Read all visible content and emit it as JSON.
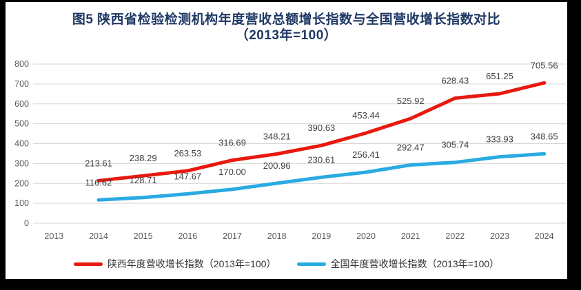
{
  "chart_data": {
    "type": "line",
    "title": "图5  陕西省检验检测机构年度营收总额增长指数与全国营收增长指数对比",
    "subtitle": "（2013年=100）",
    "categories": [
      "2013",
      "2014",
      "2015",
      "2016",
      "2017",
      "2018",
      "2019",
      "2020",
      "2021",
      "2022",
      "2023",
      "2024"
    ],
    "series": [
      {
        "name": "陕西年度营收增长指数（2013年=100）",
        "color": "#e8190f",
        "start_index": 1,
        "values": [
          213.61,
          238.29,
          263.53,
          316.69,
          348.21,
          390.63,
          453.44,
          525.92,
          628.43,
          651.25,
          705.56
        ],
        "labels": [
          "213.61",
          "238.29",
          "263.53",
          "316.69",
          "348.21",
          "390.63",
          "453.44",
          "525.92",
          "628.43",
          "651.25",
          "705.56"
        ]
      },
      {
        "name": "全国年度营收增长指数（2013年=100）",
        "color": "#29abe2",
        "start_index": 1,
        "values": [
          116.62,
          128.71,
          147.67,
          170.0,
          200.96,
          230.61,
          256.41,
          292.47,
          305.74,
          333.93,
          348.65
        ],
        "labels": [
          "116.62",
          "128.71",
          "147.67",
          "170.00",
          "200.96",
          "230.61",
          "256.41",
          "292.47",
          "305.74",
          "333.93",
          "348.65"
        ]
      }
    ],
    "ylim": [
      0,
      800
    ],
    "ytick_step": 100,
    "yticks": [
      "0",
      "100",
      "200",
      "300",
      "400",
      "500",
      "600",
      "700",
      "800"
    ],
    "grid": true,
    "legend_position": "bottom",
    "colors": {
      "gridline": "#d6d6d6",
      "axis_text": "#595959",
      "data_label": "#404040",
      "title_text": "#1f3864",
      "background": "#ffffff",
      "frame": "#000000"
    }
  }
}
